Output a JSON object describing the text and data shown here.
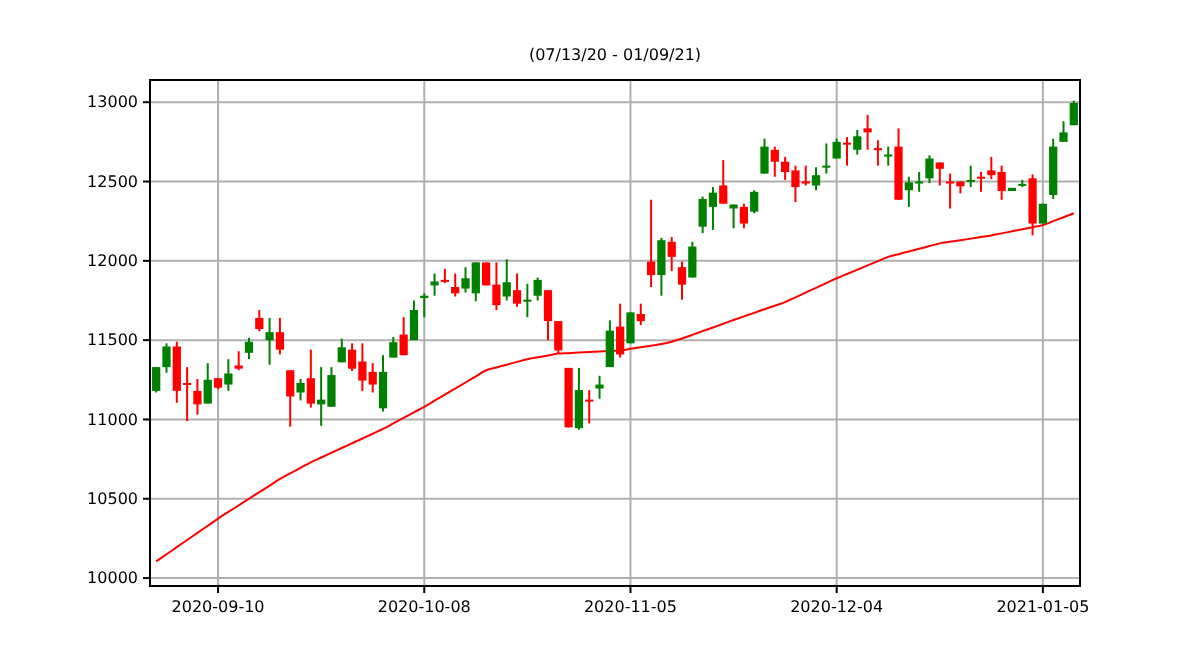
{
  "chart_data": {
    "type": "candlestick",
    "title": "(07/13/20 - 01/09/21)",
    "categories": [
      null,
      null,
      null,
      null,
      null,
      null,
      "2020-09-10",
      null,
      null,
      null,
      null,
      null,
      null,
      null,
      null,
      null,
      null,
      null,
      null,
      null,
      null,
      null,
      null,
      null,
      null,
      null,
      "2020-10-08",
      null,
      null,
      null,
      null,
      null,
      null,
      null,
      null,
      null,
      null,
      null,
      null,
      null,
      null,
      null,
      null,
      null,
      null,
      null,
      "2020-11-05",
      null,
      null,
      null,
      null,
      null,
      null,
      null,
      null,
      null,
      null,
      null,
      null,
      null,
      null,
      null,
      null,
      null,
      null,
      null,
      "2020-12-04",
      null,
      null,
      null,
      null,
      null,
      null,
      null,
      null,
      null,
      null,
      null,
      null,
      null,
      null,
      null,
      null,
      null,
      null,
      null,
      "2021-01-05",
      null,
      null,
      null
    ],
    "ohlc": [
      [
        11180,
        11330,
        11170,
        11330
      ],
      [
        11330,
        11480,
        11295,
        11460
      ],
      [
        11460,
        11490,
        11105,
        11180
      ],
      [
        11230,
        11330,
        10990,
        11220
      ],
      [
        11180,
        11255,
        11030,
        11095
      ],
      [
        11100,
        11355,
        11100,
        11250
      ],
      [
        11260,
        11260,
        11190,
        11200
      ],
      [
        11220,
        11380,
        11180,
        11290
      ],
      [
        11340,
        11430,
        11310,
        11320
      ],
      [
        11420,
        11515,
        11380,
        11490
      ],
      [
        11640,
        11690,
        11555,
        11570
      ],
      [
        11500,
        11640,
        11345,
        11550
      ],
      [
        11550,
        11640,
        11410,
        11440
      ],
      [
        11310,
        11310,
        10955,
        11145
      ],
      [
        11170,
        11255,
        11120,
        11230
      ],
      [
        11260,
        11440,
        11075,
        11100
      ],
      [
        11095,
        11330,
        10960,
        11125
      ],
      [
        11080,
        11330,
        11080,
        11280
      ],
      [
        11360,
        11510,
        11360,
        11455
      ],
      [
        11440,
        11480,
        11305,
        11320
      ],
      [
        11365,
        11480,
        11180,
        11245
      ],
      [
        11300,
        11355,
        11170,
        11220
      ],
      [
        11070,
        11405,
        11050,
        11300
      ],
      [
        11390,
        11520,
        11390,
        11487
      ],
      [
        11535,
        11645,
        11405,
        11405
      ],
      [
        11500,
        11750,
        11500,
        11690
      ],
      [
        11765,
        11795,
        11645,
        11780
      ],
      [
        11845,
        11920,
        11780,
        11870
      ],
      [
        11880,
        11950,
        11860,
        11870
      ],
      [
        11835,
        11920,
        11775,
        11795
      ],
      [
        11825,
        11960,
        11800,
        11890
      ],
      [
        11795,
        11990,
        11745,
        11990
      ],
      [
        11990,
        11990,
        11845,
        11845
      ],
      [
        11850,
        11990,
        11690,
        11720
      ],
      [
        11775,
        12010,
        11750,
        11865
      ],
      [
        11815,
        11920,
        11710,
        11730
      ],
      [
        11750,
        11855,
        11645,
        11755
      ],
      [
        11780,
        11895,
        11750,
        11880
      ],
      [
        11815,
        11815,
        11500,
        11620
      ],
      [
        11620,
        11620,
        11415,
        11435
      ],
      [
        11325,
        11325,
        10950,
        10950
      ],
      [
        10945,
        11325,
        10935,
        11185
      ],
      [
        11125,
        11185,
        10975,
        11120
      ],
      [
        11195,
        11275,
        11130,
        11220
      ],
      [
        11330,
        11625,
        11330,
        11560
      ],
      [
        11585,
        11730,
        11390,
        11410
      ],
      [
        11480,
        11675,
        11480,
        11675
      ],
      [
        11665,
        11730,
        11595,
        11620
      ],
      [
        11995,
        12385,
        11835,
        11910
      ],
      [
        11910,
        12145,
        11780,
        12130
      ],
      [
        12120,
        12150,
        11935,
        12025
      ],
      [
        11960,
        11995,
        11755,
        11850
      ],
      [
        11895,
        12120,
        11895,
        12090
      ],
      [
        12215,
        12405,
        12175,
        12390
      ],
      [
        12340,
        12465,
        12195,
        12430
      ],
      [
        12475,
        12635,
        12360,
        12360
      ],
      [
        12330,
        12355,
        12205,
        12355
      ],
      [
        12340,
        12360,
        12205,
        12235
      ],
      [
        12310,
        12445,
        12300,
        12435
      ],
      [
        12550,
        12770,
        12550,
        12720
      ],
      [
        12700,
        12720,
        12530,
        12625
      ],
      [
        12625,
        12655,
        12510,
        12560
      ],
      [
        12570,
        12600,
        12370,
        12465
      ],
      [
        12500,
        12600,
        12475,
        12495
      ],
      [
        12475,
        12590,
        12445,
        12540
      ],
      [
        12590,
        12740,
        12550,
        12600
      ],
      [
        12645,
        12770,
        12645,
        12750
      ],
      [
        12745,
        12780,
        12600,
        12740
      ],
      [
        12700,
        12825,
        12670,
        12785
      ],
      [
        12835,
        12920,
        12700,
        12810
      ],
      [
        12710,
        12760,
        12600,
        12705
      ],
      [
        12665,
        12720,
        12600,
        12670
      ],
      [
        12720,
        12835,
        12385,
        12385
      ],
      [
        12445,
        12530,
        12340,
        12495
      ],
      [
        12495,
        12560,
        12435,
        12500
      ],
      [
        12520,
        12665,
        12490,
        12645
      ],
      [
        12620,
        12620,
        12475,
        12580
      ],
      [
        12500,
        12550,
        12330,
        12495
      ],
      [
        12500,
        12500,
        12425,
        12470
      ],
      [
        12505,
        12600,
        12465,
        12510
      ],
      [
        12530,
        12560,
        12435,
        12525
      ],
      [
        12570,
        12655,
        12515,
        12540
      ],
      [
        12560,
        12600,
        12385,
        12440
      ],
      [
        12440,
        12460,
        12440,
        12460
      ],
      [
        12480,
        12510,
        12465,
        12485
      ],
      [
        12520,
        12545,
        12160,
        12235
      ],
      [
        12235,
        12360,
        12235,
        12360
      ],
      [
        12415,
        12770,
        12390,
        12720
      ],
      [
        12750,
        12880,
        12750,
        12810
      ],
      [
        12855,
        13010,
        12855,
        12995
      ]
    ],
    "colors": [
      "#008000",
      "#008000",
      "#ff0000",
      "#ff0000",
      "#ff0000",
      "#008000",
      "#ff0000",
      "#008000",
      "#ff0000",
      "#008000",
      "#ff0000",
      "#008000",
      "#ff0000",
      "#ff0000",
      "#008000",
      "#ff0000",
      "#008000",
      "#008000",
      "#008000",
      "#ff0000",
      "#ff0000",
      "#ff0000",
      "#008000",
      "#008000",
      "#ff0000",
      "#008000",
      "#008000",
      "#008000",
      "#ff0000",
      "#ff0000",
      "#008000",
      "#008000",
      "#ff0000",
      "#ff0000",
      "#008000",
      "#ff0000",
      "#008000",
      "#008000",
      "#ff0000",
      "#ff0000",
      "#ff0000",
      "#008000",
      "#ff0000",
      "#008000",
      "#008000",
      "#ff0000",
      "#008000",
      "#ff0000",
      "#ff0000",
      "#008000",
      "#ff0000",
      "#ff0000",
      "#008000",
      "#008000",
      "#008000",
      "#ff0000",
      "#008000",
      "#ff0000",
      "#008000",
      "#008000",
      "#ff0000",
      "#ff0000",
      "#ff0000",
      "#ff0000",
      "#008000",
      "#008000",
      "#008000",
      "#ff0000",
      "#008000",
      "#ff0000",
      "#ff0000",
      "#008000",
      "#ff0000",
      "#008000",
      "#008000",
      "#008000",
      "#ff0000",
      "#ff0000",
      "#ff0000",
      "#008000",
      "#ff0000",
      "#ff0000",
      "#ff0000",
      "#008000",
      "#008000",
      "#ff0000",
      "#008000",
      "#008000",
      "#008000",
      "#008000"
    ],
    "series": [
      {
        "type": "line",
        "color": "#ff0000",
        "values": [
          10105,
          10150,
          10195,
          10240,
          10285,
          10330,
          10375,
          10417,
          10458,
          10500,
          10542,
          10583,
          10625,
          10660,
          10695,
          10730,
          10760,
          10790,
          10820,
          10850,
          10880,
          10910,
          10940,
          10975,
          11010,
          11045,
          11080,
          11118,
          11157,
          11195,
          11233,
          11272,
          11310,
          11328,
          11345,
          11363,
          11380,
          11392,
          11403,
          11415,
          11418,
          11422,
          11425,
          11428,
          11432,
          11435,
          11445,
          11455,
          11465,
          11475,
          11490,
          11510,
          11533,
          11557,
          11580,
          11603,
          11627,
          11650,
          11672,
          11695,
          11717,
          11740,
          11770,
          11800,
          11830,
          11860,
          11890,
          11917,
          11944,
          11971,
          11998,
          12025,
          12042,
          12059,
          12076,
          12093,
          12110,
          12120,
          12130,
          12140,
          12150,
          12160,
          12173,
          12186,
          12199,
          12212,
          12225,
          12250,
          12275,
          12300
        ]
      }
    ],
    "ylim": [
      9950,
      13140
    ],
    "yticks": [
      10000,
      10500,
      11000,
      11500,
      12000,
      12500,
      13000
    ],
    "grid": true
  }
}
